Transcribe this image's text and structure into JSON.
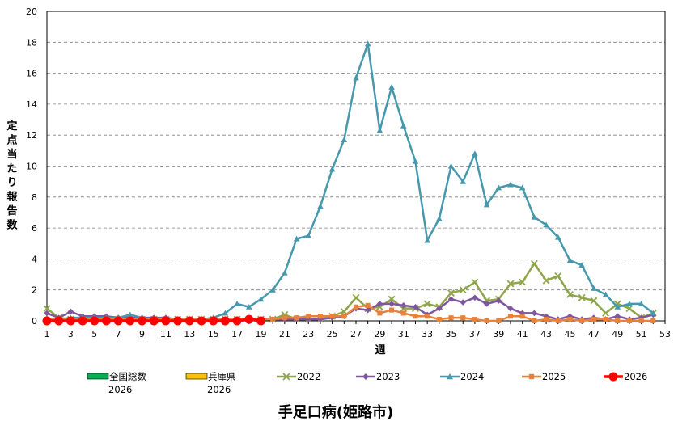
{
  "chart_data": {
    "type": "line",
    "title": "手足口病(姫路市)",
    "xlabel": "週",
    "ylabel": "定点当たり報告数",
    "xlim": [
      1,
      53
    ],
    "ylim": [
      0,
      20
    ],
    "x_ticks": [
      1,
      3,
      5,
      7,
      9,
      11,
      13,
      15,
      17,
      19,
      21,
      23,
      25,
      27,
      29,
      31,
      33,
      35,
      37,
      39,
      41,
      43,
      45,
      47,
      49,
      51,
      53
    ],
    "y_ticks": [
      0,
      2,
      4,
      6,
      8,
      10,
      12,
      14,
      16,
      18,
      20
    ],
    "grid": true,
    "legend_position": "bottom",
    "series": [
      {
        "name": "全国総数2026",
        "legend_lines": [
          "全国総数",
          "2026"
        ],
        "kind": "bar",
        "color": "#00b050",
        "x": [],
        "values": []
      },
      {
        "name": "兵庫県2026",
        "legend_lines": [
          "兵庫県",
          "2026"
        ],
        "kind": "bar",
        "color": "#ffc000",
        "x": [],
        "values": []
      },
      {
        "name": "2022",
        "legend_lines": [
          "2022"
        ],
        "kind": "line",
        "color": "#8ea54a",
        "marker": "x",
        "x": [
          1,
          2,
          3,
          4,
          5,
          6,
          7,
          8,
          9,
          10,
          11,
          12,
          13,
          14,
          15,
          16,
          17,
          18,
          19,
          20,
          21,
          22,
          23,
          24,
          25,
          26,
          27,
          28,
          29,
          30,
          31,
          32,
          33,
          34,
          35,
          36,
          37,
          38,
          39,
          40,
          41,
          42,
          43,
          44,
          45,
          46,
          47,
          48,
          49,
          50,
          51,
          52
        ],
        "values": [
          0.8,
          0.2,
          0.1,
          0.1,
          0.1,
          0.1,
          0.1,
          0.1,
          0.1,
          0.1,
          0.1,
          0.1,
          0.1,
          0.1,
          0.1,
          0.1,
          0.1,
          0.1,
          0.1,
          0.1,
          0.4,
          0.1,
          0.1,
          0.1,
          0.3,
          0.6,
          1.5,
          0.8,
          0.9,
          1.4,
          0.8,
          0.8,
          1.1,
          0.9,
          1.8,
          2.0,
          2.5,
          1.3,
          1.4,
          2.4,
          2.5,
          3.7,
          2.6,
          2.9,
          1.7,
          1.5,
          1.3,
          0.5,
          1.1,
          0.8,
          0.2,
          0.5
        ]
      },
      {
        "name": "2023",
        "legend_lines": [
          "2023"
        ],
        "kind": "line",
        "color": "#7e57a0",
        "marker": "diamond",
        "x": [
          1,
          2,
          3,
          4,
          5,
          6,
          7,
          8,
          9,
          10,
          11,
          12,
          13,
          14,
          15,
          16,
          17,
          18,
          19,
          20,
          21,
          22,
          23,
          24,
          25,
          26,
          27,
          28,
          29,
          30,
          31,
          32,
          33,
          34,
          35,
          36,
          37,
          38,
          39,
          40,
          41,
          42,
          43,
          44,
          45,
          46,
          47,
          48,
          49,
          50,
          51,
          52
        ],
        "values": [
          0.5,
          0.2,
          0.6,
          0.3,
          0.3,
          0.3,
          0.2,
          0.2,
          0.2,
          0.2,
          0.2,
          0.1,
          0.1,
          0.1,
          0.1,
          0.1,
          0.1,
          0.1,
          0.1,
          0.1,
          0.1,
          0.1,
          0.1,
          0.1,
          0.2,
          0.3,
          0.8,
          0.7,
          1.1,
          1.1,
          1.0,
          0.9,
          0.4,
          0.8,
          1.4,
          1.2,
          1.5,
          1.1,
          1.3,
          0.8,
          0.5,
          0.5,
          0.3,
          0.1,
          0.3,
          0.1,
          0.2,
          0.1,
          0.3,
          0.1,
          0.2,
          0.4
        ]
      },
      {
        "name": "2024",
        "legend_lines": [
          "2024"
        ],
        "kind": "line",
        "color": "#4698ad",
        "marker": "triangle",
        "x": [
          1,
          2,
          3,
          4,
          5,
          6,
          7,
          8,
          9,
          10,
          11,
          12,
          13,
          14,
          15,
          16,
          17,
          18,
          19,
          20,
          21,
          22,
          23,
          24,
          25,
          26,
          27,
          28,
          29,
          30,
          31,
          32,
          33,
          34,
          35,
          36,
          37,
          38,
          39,
          40,
          41,
          42,
          43,
          44,
          45,
          46,
          47,
          48,
          49,
          50,
          51,
          52
        ],
        "values": [
          0.1,
          0.1,
          0.2,
          0.2,
          0.2,
          0.2,
          0.2,
          0.4,
          0.2,
          0.1,
          0.1,
          0.1,
          0.1,
          0.1,
          0.2,
          0.5,
          1.1,
          0.9,
          1.4,
          2.0,
          3.1,
          5.3,
          5.5,
          7.4,
          9.8,
          11.7,
          15.7,
          17.9,
          12.3,
          15.1,
          12.6,
          10.3,
          5.2,
          6.6,
          10.0,
          9.0,
          10.8,
          7.5,
          8.6,
          8.8,
          8.6,
          6.7,
          6.2,
          5.4,
          3.9,
          3.6,
          2.1,
          1.7,
          0.9,
          1.1,
          1.1,
          0.5
        ]
      },
      {
        "name": "2025",
        "legend_lines": [
          "2025"
        ],
        "kind": "line",
        "color": "#e8823a",
        "marker": "square",
        "x": [
          1,
          2,
          3,
          4,
          5,
          6,
          7,
          8,
          9,
          10,
          11,
          12,
          13,
          14,
          15,
          16,
          17,
          18,
          19,
          20,
          21,
          22,
          23,
          24,
          25,
          26,
          27,
          28,
          29,
          30,
          31,
          32,
          33,
          34,
          35,
          36,
          37,
          38,
          39,
          40,
          41,
          42,
          43,
          44,
          45,
          46,
          47,
          48,
          49,
          50,
          51,
          52
        ],
        "values": [
          0.1,
          0.1,
          0.1,
          0.1,
          0.1,
          0.1,
          0.1,
          0.1,
          0.1,
          0.1,
          0.1,
          0.1,
          0.1,
          0.1,
          0.1,
          0.1,
          0.1,
          0.1,
          0.1,
          0.1,
          0.2,
          0.2,
          0.3,
          0.3,
          0.3,
          0.3,
          0.9,
          1.0,
          0.5,
          0.7,
          0.5,
          0.3,
          0.3,
          0.1,
          0.2,
          0.2,
          0.1,
          0.0,
          0.0,
          0.3,
          0.3,
          0.0,
          0.1,
          0.0,
          0.1,
          0.0,
          0.1,
          0.1,
          0.0,
          0.0,
          0.0,
          0.0
        ]
      },
      {
        "name": "2026",
        "legend_lines": [
          "2026"
        ],
        "kind": "line",
        "color": "#ff0000",
        "marker": "circle",
        "x": [
          1,
          2,
          3,
          4,
          5,
          6,
          7,
          8,
          9,
          10,
          11,
          12,
          13,
          14,
          15,
          16,
          17,
          18,
          19
        ],
        "values": [
          0.0,
          0.0,
          0.0,
          0.0,
          0.0,
          0.0,
          0.0,
          0.0,
          0.0,
          0.0,
          0.0,
          0.0,
          0.0,
          0.0,
          0.0,
          0.0,
          0.0,
          0.1,
          0.0
        ]
      }
    ]
  }
}
